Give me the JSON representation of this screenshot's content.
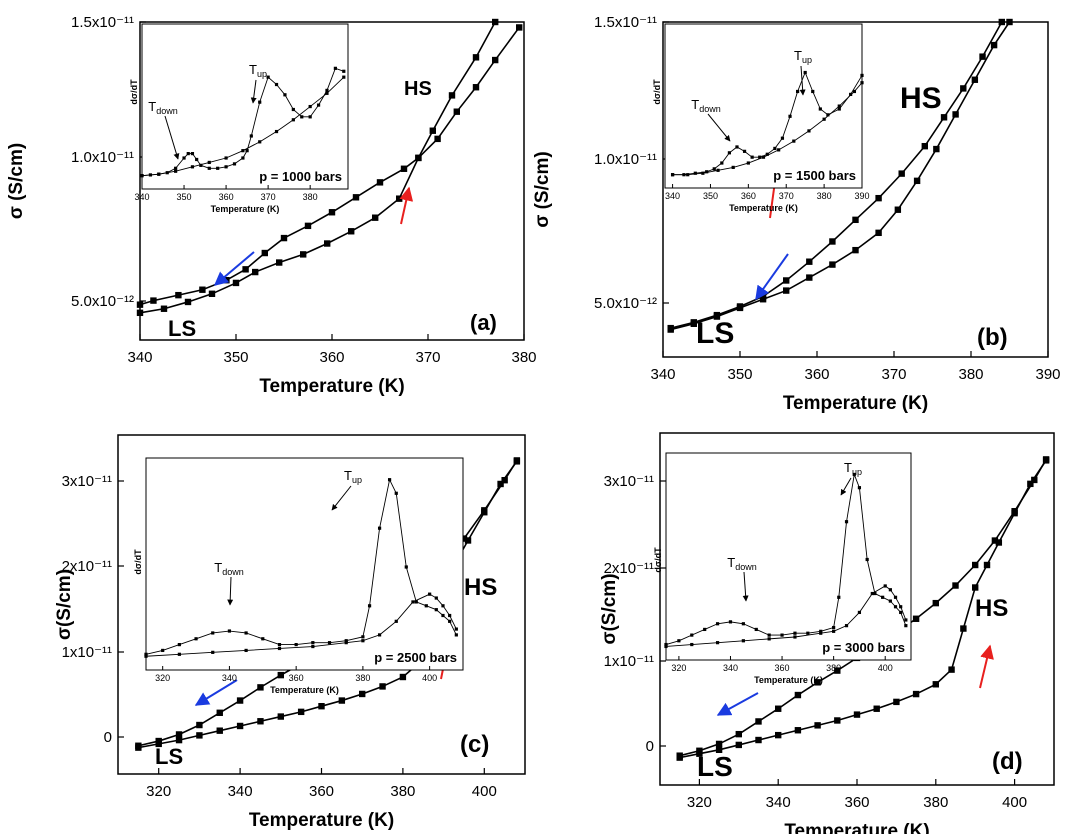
{
  "charts": [
    {
      "id": "a",
      "panel_label": "(a)",
      "xlabel": "Temperature (K)",
      "ylabel": "σ (S/cm)",
      "xticks": [
        "340",
        "350",
        "360",
        "370",
        "380"
      ],
      "yticks": [
        "5.0x10⁻¹²",
        "1.0x10⁻¹¹",
        "1.5x10⁻¹¹"
      ],
      "hs_label": "HS",
      "ls_label": "LS",
      "inset": {
        "ylabel": "dσ/dT",
        "xlabel": "Temperature (K)",
        "xticks": [
          "340",
          "350",
          "360",
          "370",
          "380"
        ],
        "pressure": "p = 1000 bars",
        "t_down": "T",
        "t_down_sub": "down",
        "t_up": "T",
        "t_up_sub": "up"
      }
    },
    {
      "id": "b",
      "panel_label": "(b)",
      "xlabel": "Temperature (K)",
      "ylabel": "σ (S/cm)",
      "xticks": [
        "340",
        "350",
        "360",
        "370",
        "380",
        "390"
      ],
      "yticks": [
        "5.0x10⁻¹²",
        "1.0x10⁻¹¹",
        "1.5x10⁻¹¹"
      ],
      "hs_label": "HS",
      "ls_label": "LS",
      "inset": {
        "ylabel": "dσ/dT",
        "xlabel": "Temperature (K)",
        "xticks": [
          "340",
          "350",
          "360",
          "370",
          "380",
          "390"
        ],
        "pressure": "p = 1500 bars",
        "t_down": "T",
        "t_down_sub": "down",
        "t_up": "T",
        "t_up_sub": "up"
      }
    },
    {
      "id": "c",
      "panel_label": "(c)",
      "xlabel": "Temperature (K)",
      "ylabel": "σ(S/cm)",
      "xticks": [
        "320",
        "340",
        "360",
        "380",
        "400"
      ],
      "yticks": [
        "0",
        "1x10⁻¹¹",
        "2x10⁻¹¹",
        "3x10⁻¹¹"
      ],
      "hs_label": "HS",
      "ls_label": "LS",
      "inset": {
        "ylabel": "dσ/dT",
        "xlabel": "Temperature (K)",
        "xticks": [
          "320",
          "340",
          "360",
          "380",
          "400"
        ],
        "pressure": "p = 2500 bars",
        "t_down": "T",
        "t_down_sub": "down",
        "t_up": "T",
        "t_up_sub": "up"
      }
    },
    {
      "id": "d",
      "panel_label": "(d)",
      "xlabel": "Temperature (K)",
      "ylabel": "σ(S/cm)",
      "xticks": [
        "320",
        "340",
        "360",
        "380",
        "400"
      ],
      "yticks": [
        "0",
        "1x10⁻¹¹",
        "2x10⁻¹¹",
        "3x10⁻¹¹"
      ],
      "hs_label": "HS",
      "ls_label": "LS",
      "inset": {
        "ylabel": "dσ/dT",
        "xlabel": "Temperature (K)",
        "xticks": [
          "320",
          "340",
          "360",
          "380",
          "400"
        ],
        "pressure": "p = 3000 bars",
        "t_down": "T",
        "t_down_sub": "down",
        "t_up": "T",
        "t_up_sub": "up"
      }
    }
  ],
  "chart_data": [
    {
      "type": "line",
      "panel": "(a)",
      "xlabel": "Temperature (K)",
      "ylabel": "σ (S/cm)",
      "xlim": [
        340,
        380
      ],
      "ylim": [
        3.3e-12,
        1.5e-11
      ],
      "arrow_colors": {
        "cooling": "#1a3be0",
        "heating": "#e8201e"
      },
      "series": [
        {
          "x": [
            340,
            341.4,
            344,
            346.5,
            349,
            351,
            353,
            355,
            357.5,
            360,
            362.5,
            365,
            367.5,
            369,
            371,
            373,
            375,
            377,
            379.5
          ],
          "y": [
            4.6e-12,
            4.75e-12,
            4.95e-12,
            5.15e-12,
            5.5e-12,
            5.9e-12,
            6.5e-12,
            7.05e-12,
            7.5e-12,
            8e-12,
            8.55e-12,
            9.1e-12,
            9.6e-12,
            1e-11,
            1.07e-11,
            1.17e-11,
            1.26e-11,
            1.36e-11,
            1.48e-11
          ]
        },
        {
          "x": [
            340,
            342.5,
            345,
            347.5,
            350,
            352,
            354.5,
            357,
            359.5,
            362,
            364.5,
            367,
            369,
            370.5,
            372.5,
            375,
            377
          ],
          "y": [
            4.3e-12,
            4.45e-12,
            4.7e-12,
            5e-12,
            5.4e-12,
            5.8e-12,
            6.15e-12,
            6.45e-12,
            6.85e-12,
            7.3e-12,
            7.8e-12,
            8.5e-12,
            1e-11,
            1.1e-11,
            1.23e-11,
            1.37e-11,
            1.5e-11
          ]
        }
      ],
      "inset": {
        "xlim": [
          340,
          389
        ],
        "series": [
          {
            "x": [
              340,
              342,
              344,
              346,
              348,
              350,
              351,
              352,
              353,
              354,
              356,
              358,
              360,
              362,
              364,
              365,
              366,
              368,
              370,
              372,
              374,
              376,
              378,
              380,
              382,
              384,
              386,
              388
            ],
            "y": [
              0.05,
              0.055,
              0.06,
              0.07,
              0.1,
              0.17,
              0.2,
              0.2,
              0.16,
              0.12,
              0.1,
              0.1,
              0.11,
              0.13,
              0.17,
              0.22,
              0.32,
              0.55,
              0.72,
              0.67,
              0.6,
              0.5,
              0.45,
              0.45,
              0.53,
              0.63,
              0.78,
              0.76
            ]
          },
          {
            "x": [
              340,
              344,
              348,
              352,
              356,
              360,
              364,
              368,
              372,
              376,
              380,
              384,
              388
            ],
            "y": [
              0.05,
              0.06,
              0.08,
              0.11,
              0.14,
              0.17,
              0.22,
              0.28,
              0.35,
              0.43,
              0.52,
              0.61,
              0.72
            ]
          }
        ]
      }
    },
    {
      "type": "line",
      "panel": "(b)",
      "xlabel": "Temperature (K)",
      "ylabel": "σ (S/cm)",
      "xlim": [
        340,
        390
      ],
      "ylim": [
        3.4e-12,
        1.5e-11
      ],
      "arrow_colors": {
        "cooling": "#1a3be0",
        "heating": "#e8201e"
      },
      "series": [
        {
          "x": [
            341,
            344,
            347,
            350,
            353,
            356,
            359,
            362,
            365,
            368,
            371,
            374,
            376.5,
            379,
            381.5,
            384
          ],
          "y": [
            4.4e-12,
            4.6e-12,
            4.85e-12,
            5.15e-12,
            5.5e-12,
            6.05e-12,
            6.7e-12,
            7.4e-12,
            8.15e-12,
            8.9e-12,
            9.75e-12,
            1.07e-11,
            1.17e-11,
            1.27e-11,
            1.38e-11,
            1.5e-11
          ]
        },
        {
          "x": [
            341,
            344,
            347,
            350,
            353,
            356,
            359,
            362,
            365,
            368,
            370.5,
            373,
            375.5,
            378,
            380.5,
            383,
            385
          ],
          "y": [
            4.35e-12,
            4.55e-12,
            4.8e-12,
            5.1e-12,
            5.4e-12,
            5.7e-12,
            6.15e-12,
            6.6e-12,
            7.1e-12,
            7.7e-12,
            8.5e-12,
            9.5e-12,
            1.06e-11,
            1.18e-11,
            1.3e-11,
            1.42e-11,
            1.5e-11
          ]
        }
      ],
      "inset": {
        "xlim": [
          338,
          390
        ],
        "series": [
          {
            "x": [
              340,
              343,
              346,
              349,
              351,
              353,
              355,
              357,
              359,
              361,
              363,
              365,
              367,
              369,
              371,
              373,
              375,
              377,
              379,
              381,
              384,
              387,
              390
            ],
            "y": [
              0.05,
              0.05,
              0.06,
              0.07,
              0.09,
              0.13,
              0.2,
              0.24,
              0.21,
              0.17,
              0.17,
              0.19,
              0.23,
              0.3,
              0.45,
              0.62,
              0.75,
              0.62,
              0.5,
              0.46,
              0.5,
              0.6,
              0.73
            ]
          },
          {
            "x": [
              340,
              344,
              348,
              352,
              356,
              360,
              364,
              368,
              372,
              376,
              380,
              384,
              388,
              390
            ],
            "y": [
              0.05,
              0.05,
              0.06,
              0.08,
              0.1,
              0.13,
              0.17,
              0.22,
              0.28,
              0.35,
              0.43,
              0.52,
              0.62,
              0.68
            ]
          }
        ]
      }
    },
    {
      "type": "line",
      "panel": "(c)",
      "xlabel": "Temperature (K)",
      "ylabel": "σ(S/cm)",
      "xlim": [
        310,
        410
      ],
      "ylim": [
        -2e-12,
        3.4e-11
      ],
      "arrow_colors": {
        "cooling": "#1a3be0",
        "heating": "#e8201e"
      },
      "series": [
        {
          "x": [
            315,
            320,
            325,
            330,
            335,
            340,
            345,
            350,
            355,
            360,
            365,
            370,
            375,
            380,
            385,
            390,
            395,
            400,
            405,
            408
          ],
          "y": [
            1e-12,
            1.5e-12,
            2.2e-12,
            3.2e-12,
            4.5e-12,
            5.8e-12,
            7.2e-12,
            8.5e-12,
            9.7e-12,
            1.1e-11,
            1.23e-11,
            1.36e-11,
            1.5e-11,
            1.66e-11,
            1.84e-11,
            2.05e-11,
            2.3e-11,
            2.6e-11,
            2.92e-11,
            3.13e-11
          ]
        },
        {
          "x": [
            315,
            320,
            325,
            330,
            335,
            340,
            345,
            350,
            355,
            360,
            365,
            370,
            375,
            380,
            384,
            387,
            390,
            393,
            396,
            400,
            404,
            408
          ],
          "y": [
            8e-13,
            1.2e-12,
            1.6e-12,
            2.1e-12,
            2.6e-12,
            3.1e-12,
            3.6e-12,
            4.1e-12,
            4.6e-12,
            5.2e-12,
            5.8e-12,
            6.5e-12,
            7.3e-12,
            8.3e-12,
            9.8e-12,
            1.4e-11,
            1.82e-11,
            2.05e-11,
            2.28e-11,
            2.58e-11,
            2.88e-11,
            3.12e-11
          ]
        }
      ],
      "inset": {
        "xlim": [
          315,
          410
        ],
        "series": [
          {
            "x": [
              315,
              320,
              325,
              330,
              335,
              340,
              345,
              350,
              355,
              360,
              365,
              370,
              375,
              380,
              382,
              385,
              388,
              390,
              393,
              396,
              399,
              402,
              404,
              406,
              408
            ],
            "y": [
              0.05,
              0.07,
              0.1,
              0.13,
              0.16,
              0.17,
              0.16,
              0.13,
              0.1,
              0.1,
              0.11,
              0.11,
              0.12,
              0.14,
              0.3,
              0.7,
              0.95,
              0.88,
              0.5,
              0.32,
              0.3,
              0.28,
              0.25,
              0.22,
              0.15
            ]
          },
          {
            "x": [
              315,
              325,
              335,
              345,
              355,
              365,
              375,
              380,
              385,
              390,
              395,
              400,
              402,
              404,
              406,
              408
            ],
            "y": [
              0.04,
              0.05,
              0.06,
              0.07,
              0.08,
              0.09,
              0.11,
              0.12,
              0.15,
              0.22,
              0.32,
              0.36,
              0.34,
              0.3,
              0.25,
              0.18
            ]
          }
        ]
      }
    },
    {
      "type": "line",
      "panel": "(d)",
      "xlabel": "Temperature (K)",
      "ylabel": "σ(S/cm)",
      "xlim": [
        310,
        410
      ],
      "ylim": [
        -2e-12,
        3.4e-11
      ],
      "arrow_colors": {
        "cooling": "#1a3be0",
        "heating": "#e8201e"
      },
      "series": [
        {
          "x": [
            315,
            320,
            325,
            330,
            335,
            340,
            345,
            350,
            355,
            360,
            365,
            370,
            375,
            380,
            385,
            390,
            395,
            400,
            405,
            408
          ],
          "y": [
            1e-12,
            1.5e-12,
            2.2e-12,
            3.2e-12,
            4.5e-12,
            5.8e-12,
            7.2e-12,
            8.5e-12,
            9.7e-12,
            1.1e-11,
            1.23e-11,
            1.36e-11,
            1.5e-11,
            1.66e-11,
            1.84e-11,
            2.05e-11,
            2.3e-11,
            2.6e-11,
            2.92e-11,
            3.13e-11
          ]
        },
        {
          "x": [
            315,
            320,
            325,
            330,
            335,
            340,
            345,
            350,
            355,
            360,
            365,
            370,
            375,
            380,
            384,
            387,
            390,
            393,
            396,
            400,
            404,
            408
          ],
          "y": [
            8e-13,
            1.2e-12,
            1.6e-12,
            2.1e-12,
            2.6e-12,
            3.1e-12,
            3.6e-12,
            4.1e-12,
            4.6e-12,
            5.2e-12,
            5.8e-12,
            6.5e-12,
            7.3e-12,
            8.3e-12,
            9.8e-12,
            1.4e-11,
            1.82e-11,
            2.05e-11,
            2.28e-11,
            2.58e-11,
            2.88e-11,
            3.12e-11
          ]
        }
      ],
      "inset": {
        "xlim": [
          315,
          410
        ],
        "series": [
          {
            "x": [
              315,
              320,
              325,
              330,
              335,
              340,
              345,
              350,
              355,
              360,
              365,
              370,
              375,
              380,
              382,
              385,
              388,
              390,
              393,
              396,
              399,
              402,
              404,
              406,
              408
            ],
            "y": [
              0.05,
              0.07,
              0.1,
              0.13,
              0.16,
              0.17,
              0.16,
              0.13,
              0.1,
              0.1,
              0.11,
              0.11,
              0.12,
              0.14,
              0.3,
              0.7,
              0.95,
              0.88,
              0.5,
              0.32,
              0.3,
              0.28,
              0.25,
              0.22,
              0.15
            ]
          },
          {
            "x": [
              315,
              325,
              335,
              345,
              355,
              365,
              375,
              380,
              385,
              390,
              395,
              400,
              402,
              404,
              406,
              408
            ],
            "y": [
              0.04,
              0.05,
              0.06,
              0.07,
              0.08,
              0.09,
              0.11,
              0.12,
              0.15,
              0.22,
              0.32,
              0.36,
              0.34,
              0.3,
              0.25,
              0.18
            ]
          }
        ]
      }
    }
  ]
}
